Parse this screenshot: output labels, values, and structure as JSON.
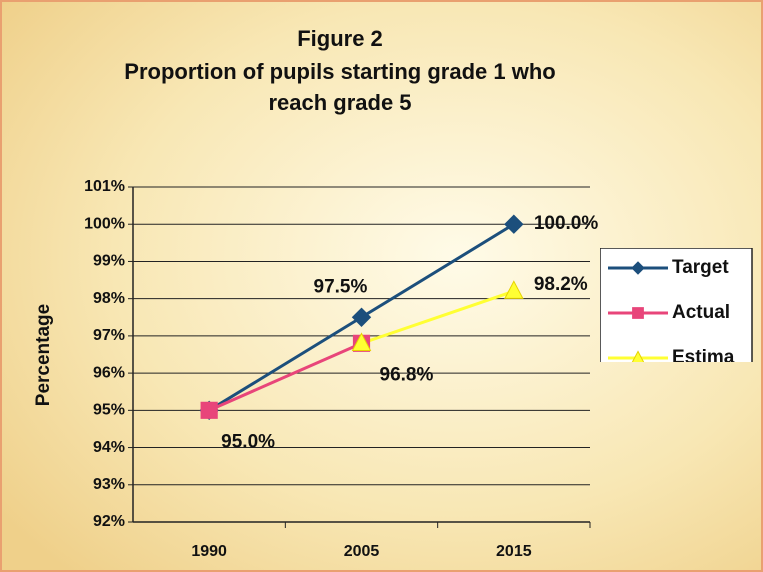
{
  "chart_data": {
    "type": "line",
    "title": "Figure 2",
    "subtitle": [
      "Proportion of pupils starting grade 1 who",
      "reach grade 5"
    ],
    "ylabel": "Percentage",
    "categories": [
      "1990",
      "2005",
      "2015"
    ],
    "series": [
      {
        "name": "Target",
        "color": "#1c4f7c",
        "marker": "diamond",
        "values": [
          95,
          97.5,
          100
        ],
        "value_labels": [
          "95.0%",
          "97.5%",
          "100.0%"
        ]
      },
      {
        "name": "Actual",
        "color": "#e8457a",
        "marker": "square",
        "values": [
          95,
          96.8,
          null
        ],
        "value_labels": [
          null,
          "96.8%",
          null
        ]
      },
      {
        "name": "Estima",
        "color": "#ffff33",
        "marker": "triangle",
        "values": [
          null,
          96.8,
          98.2
        ],
        "value_labels": [
          null,
          null,
          "98.2%"
        ]
      }
    ],
    "ylim": [
      92,
      101
    ],
    "yticks": [
      {
        "value": 92,
        "label": "92%"
      },
      {
        "value": 93,
        "label": "93%"
      },
      {
        "value": 94,
        "label": "94%"
      },
      {
        "value": 95,
        "label": "95%"
      },
      {
        "value": 96,
        "label": "96%"
      },
      {
        "value": 97,
        "label": "97%"
      },
      {
        "value": 98,
        "label": "98%"
      },
      {
        "value": 99,
        "label": "99%"
      },
      {
        "value": 100,
        "label": "100%"
      },
      {
        "value": 101,
        "label": "101%"
      }
    ],
    "grid": true,
    "legend": "right"
  }
}
